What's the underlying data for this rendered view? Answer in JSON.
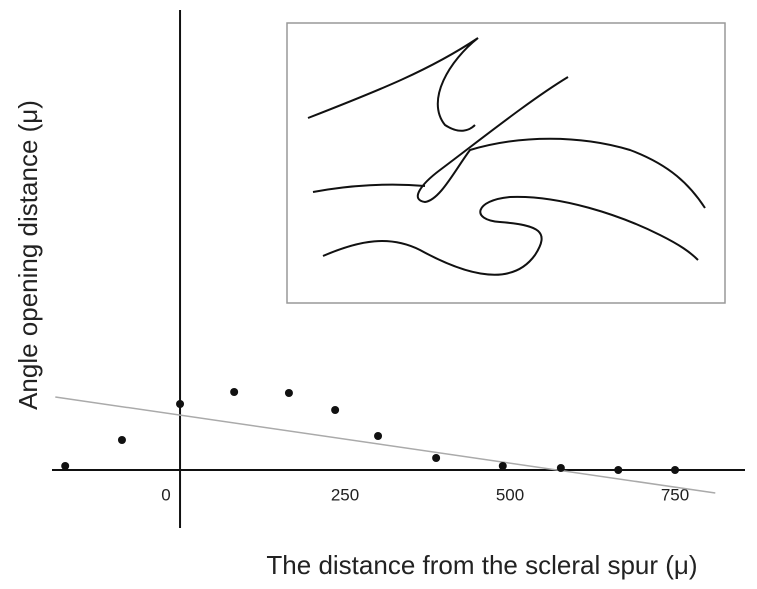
{
  "chart_data": {
    "type": "scatter",
    "xlabel": "The distance from the scleral spur (μ)",
    "ylabel": "Angle opening distance (μ)",
    "x": [
      -174,
      -88,
      0,
      82,
      165,
      235,
      300,
      388,
      489,
      577,
      664,
      750
    ],
    "values": [
      4,
      30,
      66,
      78,
      77,
      60,
      34,
      12,
      4,
      2,
      0,
      0
    ],
    "color": "#111111",
    "trend_line": {
      "x": [
        -189,
        811
      ],
      "y": [
        73,
        -23
      ],
      "color": "#aaaaaa"
    },
    "xlim": [
      -194,
      856
    ],
    "ylim": [
      -58,
      460
    ],
    "xticks": [
      0,
      250,
      500,
      750
    ]
  }
}
